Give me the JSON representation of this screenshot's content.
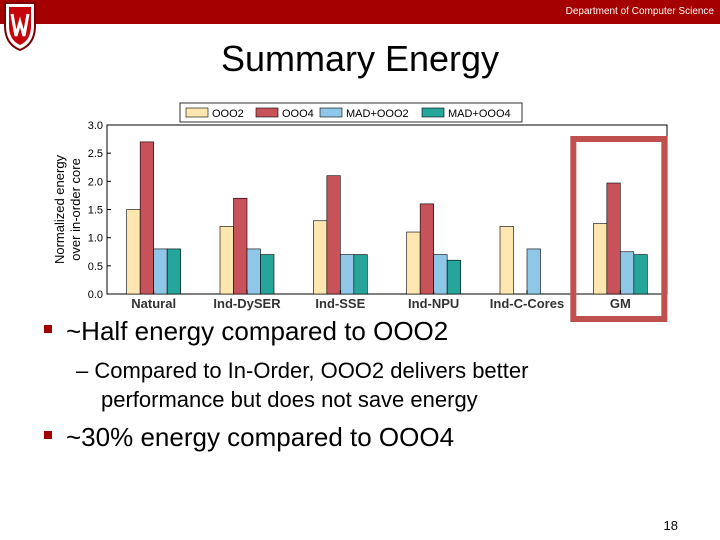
{
  "header": {
    "department": "Department of Computer Science",
    "bar_color": "#a50000",
    "logo": "uw-crest-icon"
  },
  "slide": {
    "title": "Summary Energy",
    "page_number": "18"
  },
  "bullets": [
    {
      "text": "~Half energy compared to OOO2"
    },
    {
      "text": "~30% energy compared to OOO4"
    }
  ],
  "sub_bullet": {
    "dash": "–",
    "line1": "Compared to In-Order, OOO2 delivers better",
    "line2": "performance but does not save energy"
  },
  "chart_data": {
    "type": "bar",
    "ylabel_lines": [
      "Normalized energy",
      "over in-order core"
    ],
    "xlabel": "",
    "ylim": [
      0,
      3.0
    ],
    "yticks": [
      "0.0",
      "0.5",
      "1.0",
      "1.5",
      "2.0",
      "2.5",
      "3.0"
    ],
    "categories": [
      "Natural",
      "Ind-DySER",
      "Ind-SSE",
      "Ind-NPU",
      "Ind-C-Cores",
      "GM"
    ],
    "series": [
      {
        "name": "OOO2",
        "color": "#fde6b0",
        "values": [
          1.5,
          1.2,
          1.3,
          1.1,
          1.2,
          1.25
        ]
      },
      {
        "name": "OOO4",
        "color": "#c8525a",
        "values": [
          2.7,
          1.7,
          2.1,
          1.6,
          null,
          1.97
        ]
      },
      {
        "name": "MAD+OOO2",
        "color": "#8fc7e8",
        "values": [
          0.8,
          0.8,
          0.7,
          0.7,
          0.8,
          0.75
        ]
      },
      {
        "name": "MAD+OOO4",
        "color": "#26a59a",
        "values": [
          0.8,
          0.7,
          0.7,
          0.6,
          null,
          0.7
        ]
      }
    ],
    "legend_placement": "top",
    "grid": false,
    "highlight_category": "GM",
    "highlight_color": "#c0504d"
  }
}
